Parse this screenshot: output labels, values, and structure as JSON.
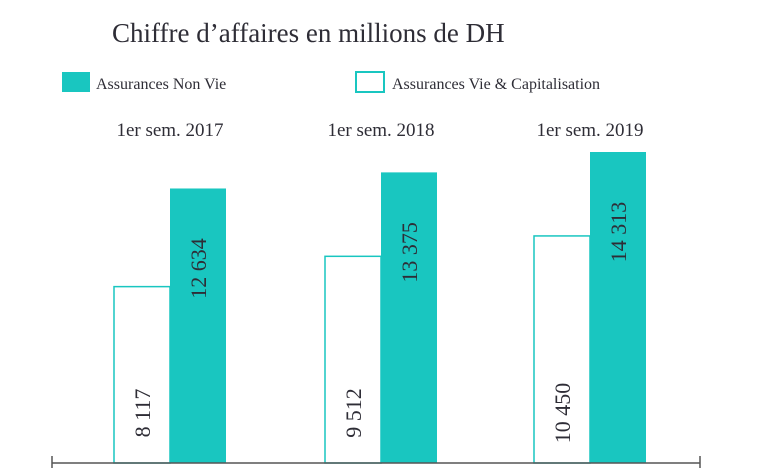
{
  "chart_data": {
    "type": "bar",
    "title": "Chiffre d’affaires en millions de DH",
    "categories": [
      "1er sem. 2017",
      "1er sem. 2018",
      "1er sem. 2019"
    ],
    "series": [
      {
        "name": "Assurances Vie & Capitalisation",
        "values": [
          8117,
          9512,
          10450
        ],
        "labels": [
          "8 117",
          "9 512",
          "10 450"
        ],
        "color": "#ffffff",
        "stroke": "#19c6c0"
      },
      {
        "name": "Assurances Non Vie",
        "values": [
          12634,
          13375,
          14313
        ],
        "labels": [
          "12 634",
          "13 375",
          "14 313"
        ],
        "color": "#19c6c0"
      }
    ],
    "legend": [
      "Assurances Non Vie",
      "Assurances Vie & Capitalisation"
    ],
    "ylim": [
      0,
      14313
    ],
    "grid": false,
    "legend_position": "top"
  }
}
